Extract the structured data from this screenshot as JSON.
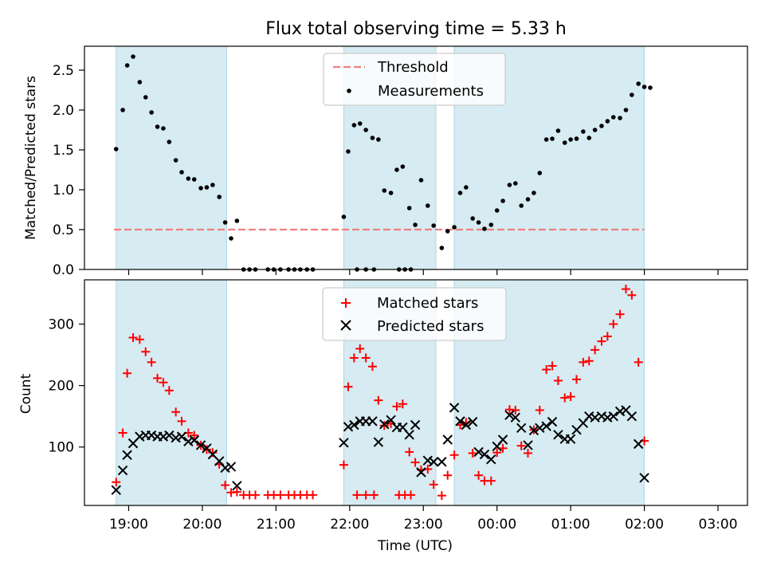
{
  "title": "Flux total observing time = 5.33 h",
  "x_label": "Time (UTC)",
  "x_ticks": [
    "19:00",
    "20:00",
    "21:00",
    "22:00",
    "23:00",
    "00:00",
    "01:00",
    "02:00",
    "03:00"
  ],
  "colors": {
    "shade": "#add8e6",
    "threshold": "#f08080",
    "matched": "#ff0000",
    "predicted": "#000000",
    "measurements": "#000000"
  },
  "chart_data": [
    {
      "type": "scatter",
      "title": "Flux total observing time = 5.33 h",
      "xlabel": "",
      "ylabel": "Matched/Predicted stars",
      "x_unit": "hours since 19:00 UTC",
      "xlim": [
        -0.6,
        8.4
      ],
      "ylim": [
        0,
        2.8
      ],
      "y_ticks": [
        "0.0",
        "0.5",
        "1.0",
        "1.5",
        "2.0",
        "2.5"
      ],
      "y_tick_values": [
        0,
        0.5,
        1.0,
        1.5,
        2.0,
        2.5
      ],
      "grid": false,
      "legend": "top-center",
      "shaded_intervals": [
        [
          -0.17,
          1.33
        ],
        [
          2.92,
          4.17
        ],
        [
          4.42,
          7.0
        ]
      ],
      "threshold": {
        "name": "Threshold",
        "value": 0.5
      },
      "series": [
        {
          "name": "Measurements",
          "points": [
            [
              -0.17,
              1.51
            ],
            [
              -0.08,
              2.0
            ],
            [
              -0.02,
              2.56
            ],
            [
              0.06,
              2.67
            ],
            [
              0.15,
              2.35
            ],
            [
              0.23,
              2.16
            ],
            [
              0.31,
              1.97
            ],
            [
              0.39,
              1.79
            ],
            [
              0.47,
              1.77
            ],
            [
              0.55,
              1.6
            ],
            [
              0.64,
              1.37
            ],
            [
              0.72,
              1.22
            ],
            [
              0.81,
              1.14
            ],
            [
              0.89,
              1.13
            ],
            [
              0.98,
              1.02
            ],
            [
              1.06,
              1.03
            ],
            [
              1.14,
              1.06
            ],
            [
              1.23,
              0.91
            ],
            [
              1.31,
              0.59
            ],
            [
              1.39,
              0.39
            ],
            [
              1.47,
              0.61
            ],
            [
              1.56,
              0.0
            ],
            [
              1.64,
              0.0
            ],
            [
              1.72,
              0.0
            ],
            [
              1.89,
              0.0
            ],
            [
              1.97,
              0.0
            ],
            [
              2.06,
              0.0
            ],
            [
              2.17,
              0.0
            ],
            [
              2.25,
              0.0
            ],
            [
              2.33,
              0.0
            ],
            [
              2.42,
              0.0
            ],
            [
              2.5,
              0.0
            ],
            [
              3.1,
              0.0
            ],
            [
              3.22,
              0.0
            ],
            [
              3.33,
              0.0
            ],
            [
              3.67,
              0.0
            ],
            [
              3.75,
              0.0
            ],
            [
              3.83,
              0.0
            ],
            [
              2.92,
              0.66
            ],
            [
              2.98,
              1.48
            ],
            [
              3.06,
              1.81
            ],
            [
              3.14,
              1.83
            ],
            [
              3.22,
              1.75
            ],
            [
              3.31,
              1.65
            ],
            [
              3.39,
              1.63
            ],
            [
              3.47,
              0.99
            ],
            [
              3.56,
              0.96
            ],
            [
              3.64,
              1.25
            ],
            [
              3.72,
              1.29
            ],
            [
              3.81,
              0.77
            ],
            [
              3.89,
              0.56
            ],
            [
              3.97,
              1.12
            ],
            [
              4.06,
              0.8
            ],
            [
              4.14,
              0.55
            ],
            [
              4.25,
              0.27
            ],
            [
              4.33,
              0.48
            ],
            [
              4.42,
              0.53
            ],
            [
              4.5,
              0.96
            ],
            [
              4.58,
              1.03
            ],
            [
              4.67,
              0.64
            ],
            [
              4.75,
              0.59
            ],
            [
              4.83,
              0.51
            ],
            [
              4.92,
              0.56
            ],
            [
              5.0,
              0.74
            ],
            [
              5.08,
              0.86
            ],
            [
              5.17,
              1.06
            ],
            [
              5.25,
              1.08
            ],
            [
              5.33,
              0.8
            ],
            [
              5.42,
              0.88
            ],
            [
              5.5,
              0.96
            ],
            [
              5.58,
              1.21
            ],
            [
              5.67,
              1.63
            ],
            [
              5.75,
              1.64
            ],
            [
              5.83,
              1.74
            ],
            [
              5.92,
              1.59
            ],
            [
              6.0,
              1.63
            ],
            [
              6.08,
              1.64
            ],
            [
              6.17,
              1.73
            ],
            [
              6.25,
              1.65
            ],
            [
              6.33,
              1.75
            ],
            [
              6.42,
              1.8
            ],
            [
              6.5,
              1.86
            ],
            [
              6.58,
              1.91
            ],
            [
              6.67,
              1.9
            ],
            [
              6.75,
              2.0
            ],
            [
              6.83,
              2.19
            ],
            [
              6.92,
              2.33
            ],
            [
              7.0,
              2.29
            ],
            [
              7.08,
              2.28
            ]
          ]
        }
      ]
    },
    {
      "type": "scatter",
      "xlabel": "Time (UTC)",
      "ylabel": "Count",
      "x_unit": "hours since 19:00 UTC",
      "xlim": [
        -0.6,
        8.4
      ],
      "ylim": [
        5,
        372
      ],
      "y_ticks": [
        "100",
        "200",
        "300"
      ],
      "y_tick_values": [
        100,
        200,
        300
      ],
      "grid": false,
      "legend": "top-center",
      "shaded_intervals": [
        [
          -0.17,
          1.33
        ],
        [
          2.92,
          4.17
        ],
        [
          4.42,
          7.0
        ]
      ],
      "series": [
        {
          "name": "Matched stars",
          "marker": "+",
          "points": [
            [
              -0.17,
              43
            ],
            [
              -0.08,
              123
            ],
            [
              -0.02,
              220
            ],
            [
              0.06,
              278
            ],
            [
              0.15,
              275
            ],
            [
              0.23,
              255
            ],
            [
              0.31,
              238
            ],
            [
              0.39,
              212
            ],
            [
              0.47,
              205
            ],
            [
              0.55,
              192
            ],
            [
              0.64,
              157
            ],
            [
              0.72,
              142
            ],
            [
              0.81,
              123
            ],
            [
              0.89,
              119
            ],
            [
              0.98,
              103
            ],
            [
              1.06,
              96
            ],
            [
              1.14,
              91
            ],
            [
              1.23,
              72
            ],
            [
              1.31,
              38
            ],
            [
              1.39,
              26
            ],
            [
              1.47,
              27
            ],
            [
              1.56,
              22
            ],
            [
              1.64,
              22
            ],
            [
              1.72,
              22
            ],
            [
              1.89,
              22
            ],
            [
              1.97,
              22
            ],
            [
              2.06,
              22
            ],
            [
              2.17,
              22
            ],
            [
              2.25,
              22
            ],
            [
              2.33,
              22
            ],
            [
              2.42,
              22
            ],
            [
              2.5,
              22
            ],
            [
              3.1,
              22
            ],
            [
              3.22,
              22
            ],
            [
              3.33,
              22
            ],
            [
              3.67,
              22
            ],
            [
              3.75,
              22
            ],
            [
              3.83,
              22
            ],
            [
              2.92,
              71
            ],
            [
              2.98,
              198
            ],
            [
              3.06,
              245
            ],
            [
              3.14,
              260
            ],
            [
              3.22,
              245
            ],
            [
              3.31,
              231
            ],
            [
              3.39,
              176
            ],
            [
              3.47,
              135
            ],
            [
              3.56,
              138
            ],
            [
              3.64,
              166
            ],
            [
              3.72,
              170
            ],
            [
              3.81,
              92
            ],
            [
              3.89,
              75
            ],
            [
              3.97,
              63
            ],
            [
              4.06,
              64
            ],
            [
              4.14,
              39
            ],
            [
              4.25,
              21
            ],
            [
              4.33,
              54
            ],
            [
              4.42,
              87
            ],
            [
              4.5,
              136
            ],
            [
              4.58,
              140
            ],
            [
              4.67,
              90
            ],
            [
              4.75,
              54
            ],
            [
              4.83,
              45
            ],
            [
              4.92,
              45
            ],
            [
              5.0,
              91
            ],
            [
              5.08,
              98
            ],
            [
              5.17,
              161
            ],
            [
              5.25,
              160
            ],
            [
              5.33,
              102
            ],
            [
              5.42,
              90
            ],
            [
              5.5,
              128
            ],
            [
              5.58,
              160
            ],
            [
              5.67,
              226
            ],
            [
              5.75,
              232
            ],
            [
              5.83,
              208
            ],
            [
              5.92,
              180
            ],
            [
              6.0,
              182
            ],
            [
              6.08,
              210
            ],
            [
              6.17,
              238
            ],
            [
              6.25,
              240
            ],
            [
              6.33,
              258
            ],
            [
              6.42,
              272
            ],
            [
              6.5,
              280
            ],
            [
              6.58,
              300
            ],
            [
              6.67,
              316
            ],
            [
              6.75,
              357
            ],
            [
              6.83,
              347
            ],
            [
              6.92,
              238
            ],
            [
              7.0,
              110
            ]
          ]
        },
        {
          "name": "Predicted stars",
          "marker": "x",
          "points": [
            [
              -0.17,
              30
            ],
            [
              -0.08,
              62
            ],
            [
              -0.02,
              87
            ],
            [
              0.06,
              106
            ],
            [
              0.15,
              117
            ],
            [
              0.23,
              119
            ],
            [
              0.31,
              119
            ],
            [
              0.39,
              117
            ],
            [
              0.47,
              117
            ],
            [
              0.55,
              119
            ],
            [
              0.64,
              115
            ],
            [
              0.72,
              117
            ],
            [
              0.81,
              109
            ],
            [
              0.89,
              111
            ],
            [
              0.98,
              103
            ],
            [
              1.06,
              98
            ],
            [
              1.14,
              88
            ],
            [
              1.23,
              77
            ],
            [
              1.31,
              66
            ],
            [
              1.39,
              68
            ],
            [
              1.47,
              37
            ],
            [
              2.92,
              107
            ],
            [
              2.98,
              133
            ],
            [
              3.06,
              136
            ],
            [
              3.14,
              142
            ],
            [
              3.22,
              142
            ],
            [
              3.31,
              142
            ],
            [
              3.39,
              108
            ],
            [
              3.47,
              137
            ],
            [
              3.56,
              144
            ],
            [
              3.64,
              132
            ],
            [
              3.72,
              132
            ],
            [
              3.81,
              120
            ],
            [
              3.89,
              136
            ],
            [
              3.97,
              59
            ],
            [
              4.06,
              78
            ],
            [
              4.14,
              76
            ],
            [
              4.25,
              76
            ],
            [
              4.33,
              112
            ],
            [
              4.42,
              164
            ],
            [
              4.5,
              142
            ],
            [
              4.58,
              136
            ],
            [
              4.67,
              141
            ],
            [
              4.75,
              92
            ],
            [
              4.83,
              88
            ],
            [
              4.92,
              80
            ],
            [
              5.0,
              101
            ],
            [
              5.08,
              112
            ],
            [
              5.17,
              152
            ],
            [
              5.25,
              148
            ],
            [
              5.33,
              131
            ],
            [
              5.42,
              103
            ],
            [
              5.5,
              127
            ],
            [
              5.58,
              131
            ],
            [
              5.67,
              134
            ],
            [
              5.75,
              141
            ],
            [
              5.83,
              120
            ],
            [
              5.92,
              113
            ],
            [
              6.0,
              113
            ],
            [
              6.08,
              128
            ],
            [
              6.17,
              139
            ],
            [
              6.25,
              150
            ],
            [
              6.33,
              148
            ],
            [
              6.42,
              150
            ],
            [
              6.5,
              148
            ],
            [
              6.58,
              150
            ],
            [
              6.67,
              158
            ],
            [
              6.75,
              160
            ],
            [
              6.83,
              150
            ],
            [
              6.92,
              105
            ],
            [
              7.0,
              50
            ]
          ]
        }
      ]
    }
  ]
}
